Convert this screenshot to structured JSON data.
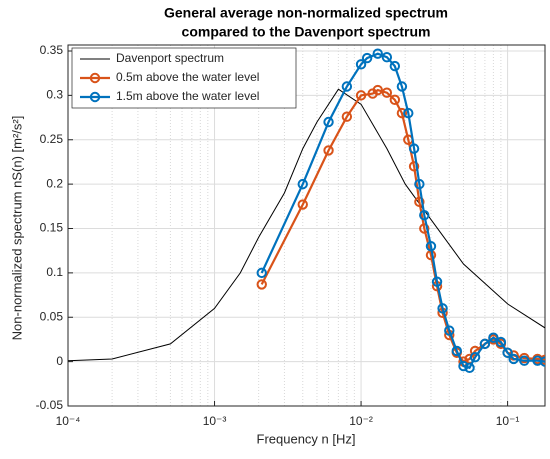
{
  "chart_data": {
    "type": "line",
    "title": [
      "General average non-normalized spectrum",
      "compared to the Davenport spectrum"
    ],
    "xlabel": "Frequency n [Hz]",
    "ylabel": "Non-normalized spectrum nS(n) [m²/s²]",
    "xscale": "log",
    "xlim": [
      0.0001,
      0.18
    ],
    "xticks": [
      {
        "value": 0.0001,
        "label": "10⁻⁴"
      },
      {
        "value": 0.001,
        "label": "10⁻³"
      },
      {
        "value": 0.01,
        "label": "10⁻²"
      },
      {
        "value": 0.1,
        "label": "10⁻¹"
      }
    ],
    "ylim": [
      -0.05,
      0.35
    ],
    "yticks": [
      -0.05,
      0,
      0.05,
      0.1,
      0.15,
      0.2,
      0.25,
      0.3,
      0.35
    ],
    "grid": true,
    "legend": "top-left",
    "series": [
      {
        "name": "Davenport spectrum",
        "color": "#000000",
        "markers": false,
        "x": [
          0.0001,
          0.0002,
          0.0005,
          0.001,
          0.0015,
          0.002,
          0.003,
          0.004,
          0.005,
          0.007,
          0.01,
          0.015,
          0.02,
          0.03,
          0.05,
          0.1,
          0.18
        ],
        "values": [
          0.001,
          0.003,
          0.02,
          0.06,
          0.1,
          0.14,
          0.19,
          0.24,
          0.27,
          0.307,
          0.29,
          0.24,
          0.2,
          0.16,
          0.11,
          0.065,
          0.038
        ]
      },
      {
        "name": "0.5m above the water level",
        "color": "#d95319",
        "markers": true,
        "x": [
          0.0021,
          0.004,
          0.006,
          0.008,
          0.01,
          0.012,
          0.013,
          0.015,
          0.017,
          0.019,
          0.021,
          0.023,
          0.025,
          0.027,
          0.03,
          0.033,
          0.036,
          0.04,
          0.045,
          0.05,
          0.055,
          0.06,
          0.07,
          0.08,
          0.09,
          0.1,
          0.11,
          0.13,
          0.16,
          0.18
        ],
        "values": [
          0.087,
          0.177,
          0.238,
          0.276,
          0.3,
          0.302,
          0.306,
          0.303,
          0.295,
          0.28,
          0.25,
          0.22,
          0.18,
          0.15,
          0.12,
          0.085,
          0.055,
          0.03,
          0.01,
          0.0,
          0.003,
          0.012,
          0.02,
          0.025,
          0.02,
          0.01,
          0.007,
          0.004,
          0.003,
          0.002
        ]
      },
      {
        "name": "1.5m above the water level",
        "color": "#0072bd",
        "markers": true,
        "x": [
          0.0021,
          0.004,
          0.006,
          0.008,
          0.01,
          0.011,
          0.013,
          0.015,
          0.017,
          0.019,
          0.021,
          0.023,
          0.025,
          0.027,
          0.03,
          0.033,
          0.036,
          0.04,
          0.045,
          0.05,
          0.055,
          0.06,
          0.07,
          0.08,
          0.09,
          0.1,
          0.11,
          0.13,
          0.16,
          0.18
        ],
        "values": [
          0.1,
          0.2,
          0.27,
          0.31,
          0.335,
          0.342,
          0.347,
          0.343,
          0.333,
          0.31,
          0.28,
          0.24,
          0.2,
          0.165,
          0.13,
          0.09,
          0.06,
          0.035,
          0.012,
          -0.005,
          -0.007,
          0.005,
          0.02,
          0.027,
          0.022,
          0.01,
          0.003,
          0.001,
          0.001,
          0.0
        ]
      }
    ]
  }
}
